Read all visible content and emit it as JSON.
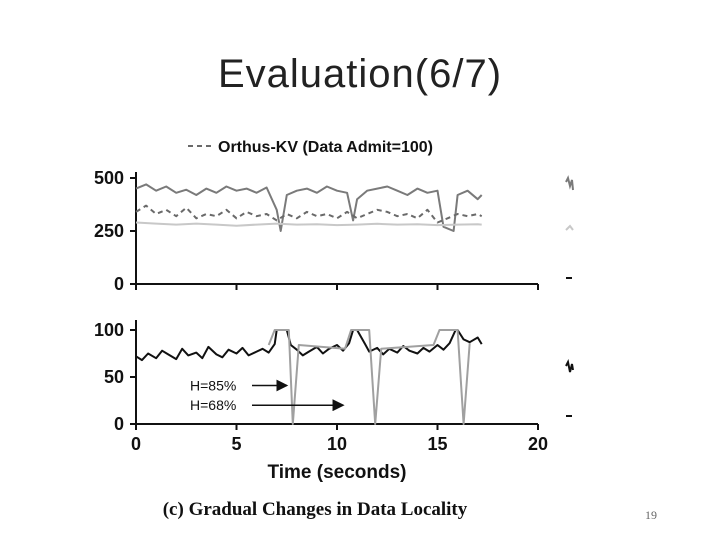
{
  "slide": {
    "title": "Evaluation(6/7)",
    "page_number": "19"
  },
  "chart_data": [
    {
      "type": "line",
      "legend": [
        "Orthus-KV (Data Admit=100)"
      ],
      "xlim": [
        0,
        20
      ],
      "ylim": [
        0,
        500
      ],
      "x_ticks": [
        "0",
        "5",
        "10",
        "15",
        "20"
      ],
      "y_ticks": [
        "0",
        "250",
        "500"
      ],
      "series": [
        {
          "name": "",
          "style": "solid",
          "color": "#7a7a7a",
          "x": [
            0,
            0.5,
            1,
            1.5,
            2,
            2.5,
            3,
            3.5,
            4,
            4.5,
            5,
            5.5,
            6,
            6.5,
            7,
            7.2,
            7.5,
            8,
            8.5,
            9,
            9.5,
            10,
            10.5,
            10.8,
            11,
            11.5,
            12,
            12.5,
            13,
            13.5,
            14,
            14.5,
            15,
            15.3,
            15.8,
            16,
            16.5,
            17,
            17.2
          ],
          "values": [
            450,
            470,
            440,
            460,
            430,
            445,
            420,
            450,
            430,
            460,
            440,
            450,
            430,
            455,
            350,
            250,
            420,
            440,
            450,
            430,
            460,
            440,
            430,
            300,
            400,
            440,
            450,
            460,
            440,
            420,
            450,
            430,
            440,
            270,
            250,
            420,
            440,
            400,
            420
          ]
        },
        {
          "name": "Orthus-KV (Data Admit=100)",
          "style": "dashed",
          "color": "#6a6a6a",
          "x": [
            0,
            0.5,
            1,
            1.5,
            2,
            2.5,
            3,
            3.5,
            4,
            4.5,
            5,
            5.5,
            6,
            6.5,
            7,
            7.5,
            8,
            8.5,
            9,
            9.5,
            10,
            10.5,
            11,
            11.5,
            12,
            12.5,
            13,
            13.5,
            14,
            14.5,
            15,
            15.5,
            16,
            16.5,
            17,
            17.2
          ],
          "values": [
            340,
            370,
            330,
            350,
            320,
            360,
            310,
            330,
            320,
            350,
            310,
            340,
            320,
            330,
            300,
            330,
            310,
            340,
            320,
            330,
            310,
            340,
            310,
            330,
            350,
            340,
            320,
            330,
            310,
            350,
            290,
            310,
            330,
            320,
            330,
            320
          ]
        },
        {
          "name": "",
          "style": "solid",
          "color": "#c8c8c8",
          "x": [
            0,
            1,
            2,
            3,
            4,
            5,
            6,
            7,
            8,
            9,
            10,
            11,
            12,
            13,
            14,
            15,
            16,
            17,
            17.2
          ],
          "values": [
            290,
            285,
            280,
            285,
            280,
            275,
            280,
            285,
            280,
            282,
            278,
            280,
            284,
            280,
            282,
            278,
            280,
            282,
            280
          ]
        }
      ]
    },
    {
      "type": "line",
      "xlim": [
        0,
        20
      ],
      "ylim": [
        0,
        100
      ],
      "x_ticks": [
        "0",
        "5",
        "10",
        "15",
        "20"
      ],
      "y_ticks": [
        "0",
        "50",
        "100"
      ],
      "xlabel": "Time (seconds)",
      "annotations": [
        {
          "text": "H=85%",
          "x": 7.6,
          "y": 41
        },
        {
          "text": "H=68%",
          "x": 10.4,
          "y": 20
        }
      ],
      "series": [
        {
          "name": "",
          "style": "solid",
          "color": "#111111",
          "x": [
            0,
            0.3,
            0.6,
            1,
            1.3,
            1.6,
            2,
            2.3,
            2.6,
            3,
            3.3,
            3.6,
            4,
            4.3,
            4.6,
            5,
            5.3,
            5.6,
            6,
            6.3,
            6.6,
            6.9,
            7,
            7.5,
            7.7,
            8,
            8.3,
            8.6,
            9,
            9.3,
            9.6,
            10,
            10.3,
            10.6,
            10.8,
            11,
            11.4,
            11.6,
            12,
            12.3,
            12.6,
            13,
            13.3,
            13.6,
            14,
            14.3,
            14.6,
            15,
            15.3,
            15.6,
            15.9,
            16,
            16.3,
            16.6,
            17,
            17.2
          ],
          "values": [
            72,
            68,
            75,
            70,
            78,
            74,
            69,
            80,
            73,
            76,
            70,
            82,
            74,
            71,
            79,
            75,
            81,
            73,
            77,
            80,
            76,
            85,
            100,
            100,
            84,
            79,
            73,
            77,
            82,
            75,
            80,
            84,
            78,
            86,
            100,
            100,
            85,
            77,
            81,
            74,
            80,
            76,
            83,
            78,
            75,
            81,
            77,
            84,
            79,
            86,
            100,
            100,
            90,
            87,
            92,
            85
          ]
        },
        {
          "name": "",
          "style": "solid",
          "color": "#a0a0a0",
          "x": [
            6.6,
            6.9,
            7.1,
            7.6,
            7.8,
            8.1,
            10.4,
            10.7,
            11.0,
            11.6,
            11.9,
            12.2,
            14.8,
            15.1,
            15.4,
            16.0,
            16.3,
            16.6
          ],
          "values": [
            84,
            100,
            100,
            100,
            0,
            84,
            80,
            100,
            100,
            100,
            0,
            80,
            84,
            100,
            100,
            100,
            0,
            86
          ]
        }
      ]
    }
  ],
  "caption": "(c) Gradual Changes in Data Locality"
}
